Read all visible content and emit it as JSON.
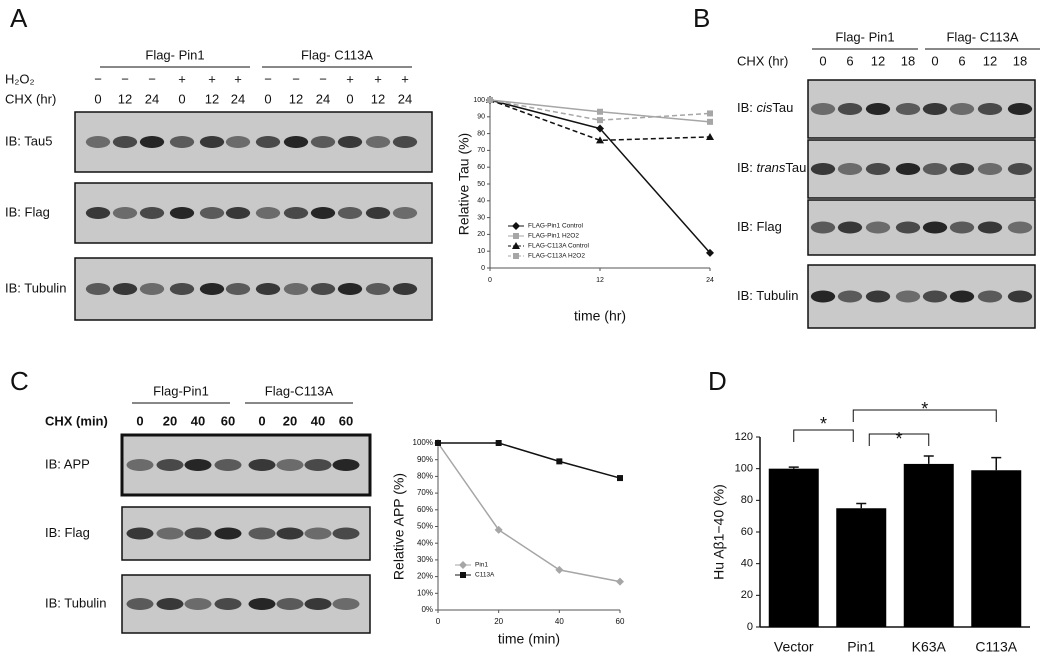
{
  "panels": [
    "A",
    "B",
    "C",
    "D"
  ],
  "blot_a": {
    "groups": [
      "Flag- Pin1",
      "Flag- C113A"
    ],
    "treat_label": "H₂O₂",
    "treat": [
      "−",
      "−",
      "−",
      "+",
      "+",
      "+",
      "−",
      "−",
      "−",
      "+",
      "+",
      "+"
    ],
    "chx_label": "CHX (hr)",
    "chx": [
      0,
      12,
      24,
      0,
      12,
      24,
      0,
      12,
      24,
      0,
      12,
      24
    ],
    "rows": [
      "IB: Tau5",
      "IB: Flag",
      "IB: Tubulin"
    ]
  },
  "blot_b": {
    "groups": [
      "Flag- Pin1",
      "Flag- C113A"
    ],
    "chx_label": "CHX (hr)",
    "chx": [
      0,
      6,
      12,
      18,
      0,
      6,
      12,
      18
    ],
    "rows": [
      {
        "prefix": "IB: ",
        "italic": "cis",
        "suffix": "Tau"
      },
      {
        "prefix": "IB: ",
        "italic": "trans",
        "suffix": "Tau"
      },
      "IB: Flag",
      "IB: Tubulin"
    ]
  },
  "blot_c": {
    "groups": [
      "Flag-Pin1",
      "Flag-C113A"
    ],
    "chx_label": "CHX (min)",
    "chx": [
      0,
      20,
      40,
      60,
      0,
      20,
      40,
      60
    ],
    "rows": [
      "IB: APP",
      "IB: Flag",
      "IB: Tubulin"
    ]
  },
  "chart_data": [
    {
      "type": "line",
      "x_label": "time (hr)",
      "y_label": "Relative Tau (%)",
      "x": [
        0,
        12,
        24
      ],
      "xlim": [
        0,
        24
      ],
      "xticks": [
        0,
        12,
        24
      ],
      "ylim": [
        0,
        100
      ],
      "yticks": [
        0,
        10,
        20,
        30,
        40,
        50,
        60,
        70,
        80,
        90,
        100
      ],
      "legend": "lower left",
      "series": [
        {
          "name": "FLAG-Pin1 Control",
          "color": "#111111",
          "marker": "diamond",
          "dashed": false,
          "values": [
            100,
            83,
            9
          ]
        },
        {
          "name": "FLAG-Pin1 H2O2",
          "color": "#a6a6a6",
          "marker": "square",
          "dashed": false,
          "values": [
            100,
            93,
            87
          ]
        },
        {
          "name": "FLAG-C113A Control",
          "color": "#111111",
          "marker": "triangle",
          "dashed": true,
          "values": [
            100,
            76,
            78
          ]
        },
        {
          "name": "FLAG-C113A H2O2",
          "color": "#a6a6a6",
          "marker": "square",
          "dashed": true,
          "values": [
            100,
            88,
            92
          ]
        }
      ]
    },
    {
      "type": "line",
      "x_label": "time (min)",
      "y_label": "Relative APP (%)",
      "x": [
        0,
        20,
        40,
        60
      ],
      "xlim": [
        0,
        60
      ],
      "xticks": [
        0,
        20,
        40,
        60
      ],
      "ylim": [
        0,
        100
      ],
      "yticks": [
        {
          "value": 0,
          "label": "0%"
        },
        {
          "value": 10,
          "label": "10%"
        },
        {
          "value": 20,
          "label": "20%"
        },
        {
          "value": 30,
          "label": "30%"
        },
        {
          "value": 40,
          "label": "40%"
        },
        {
          "value": 50,
          "label": "50%"
        },
        {
          "value": 60,
          "label": "60%"
        },
        {
          "value": 70,
          "label": "70%"
        },
        {
          "value": 80,
          "label": "80%"
        },
        {
          "value": 90,
          "label": "90%"
        },
        {
          "value": 100,
          "label": "100%"
        }
      ],
      "legend": "lower left",
      "series": [
        {
          "name": "Pin1",
          "color": "#a6a6a6",
          "marker": "diamond",
          "dashed": false,
          "values": [
            100,
            48,
            24,
            17
          ]
        },
        {
          "name": "C113A",
          "color": "#111111",
          "marker": "square",
          "dashed": false,
          "values": [
            100,
            100,
            89,
            79
          ]
        }
      ]
    },
    {
      "type": "bar",
      "y_label": "Hu Aβ1−40 (%)",
      "categories": [
        "Vector",
        "Pin1",
        "K63A",
        "C113A"
      ],
      "values": [
        100,
        75,
        103,
        99
      ],
      "errors": [
        1,
        3,
        5,
        8
      ],
      "color": "#000000",
      "ylim": [
        0,
        120
      ],
      "yticks": [
        0,
        20,
        40,
        60,
        80,
        100,
        120
      ],
      "annotations": [
        "*",
        "*",
        "*"
      ]
    }
  ]
}
